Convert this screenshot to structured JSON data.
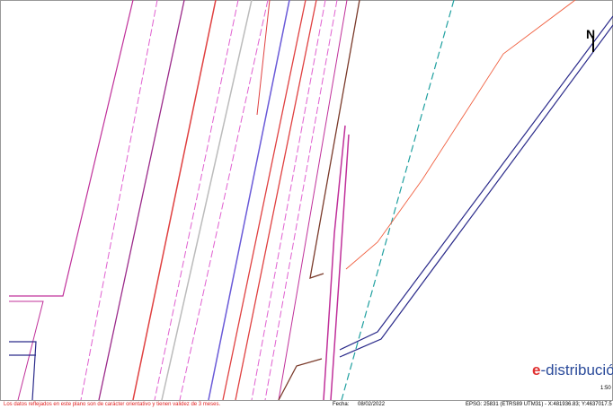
{
  "north_label": "N",
  "brand_mark": "e",
  "brand_name": "-distribución",
  "scale": "1:50",
  "footer": {
    "disclaimer": "Los datos reflejados en este plano son de carácter orientativo y tienen validez de 3 meses.",
    "date_label": "Fecha:",
    "date": "08/02/2022",
    "coordinates": "EPSG: 25831 (ETRS89 UTM31) - X:481936.83; Y:4637017.5"
  }
}
